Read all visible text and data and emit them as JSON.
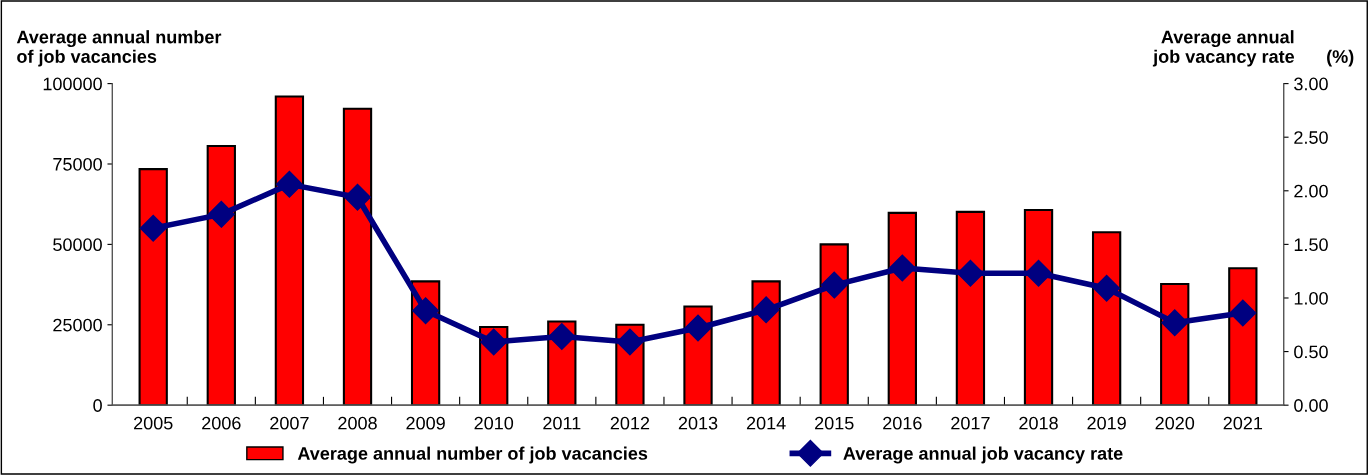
{
  "chart_data": {
    "type": "bar",
    "ylabel": "Average annual number\nof job vacancies",
    "y2label": "Average annual\njob vacancy rate",
    "annotations": [
      "(%)"
    ],
    "categories": [
      "2005",
      "2006",
      "2007",
      "2008",
      "2009",
      "2010",
      "2011",
      "2012",
      "2013",
      "2014",
      "2015",
      "2016",
      "2017",
      "2018",
      "2019",
      "2020",
      "2021"
    ],
    "series": [
      {
        "name": "Average annual number of job vacancies",
        "color": "#ff0000",
        "values": [
          73400,
          80600,
          96000,
          92200,
          38500,
          24300,
          26000,
          25000,
          30700,
          38500,
          50000,
          59800,
          60100,
          60700,
          53800,
          37700,
          42600
        ]
      },
      {
        "name": "Average annual job vacancy rate",
        "type": "line",
        "axis": "y2",
        "color": "#000080",
        "marker": "diamond",
        "values": [
          1.65,
          1.78,
          2.06,
          1.94,
          0.88,
          0.59,
          0.64,
          0.59,
          0.72,
          0.89,
          1.12,
          1.28,
          1.23,
          1.23,
          1.09,
          0.77,
          0.86
        ]
      }
    ],
    "ylim": [
      0,
      100000
    ],
    "yticks": [
      0,
      25000,
      50000,
      75000,
      100000
    ],
    "y2lim": [
      0,
      3
    ],
    "y2ticks": [
      {
        "value": 0,
        "label": "0.00"
      },
      {
        "value": 0.5,
        "label": "0.50"
      },
      {
        "value": 1,
        "label": "1.00"
      },
      {
        "value": 1.5,
        "label": "1.50"
      },
      {
        "value": 2,
        "label": "2.00"
      },
      {
        "value": 2.5,
        "label": "2.50"
      },
      {
        "value": 3,
        "label": "3.00"
      }
    ],
    "grid": false,
    "legend": "bottom"
  }
}
